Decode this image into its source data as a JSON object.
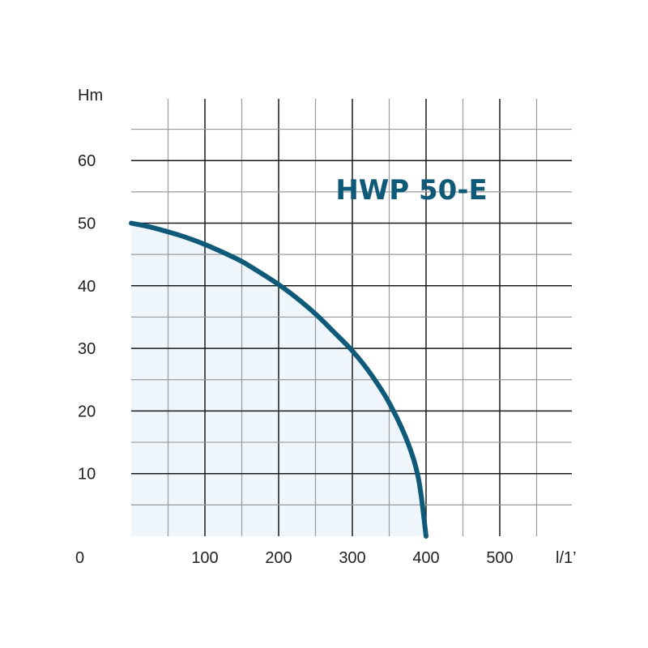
{
  "chart_data": {
    "type": "line",
    "title": "HWP 50-E",
    "xlabel": "l/1’",
    "ylabel": "Hm",
    "origin_label": "0",
    "xlim": [
      0,
      600
    ],
    "ylim": [
      0,
      70
    ],
    "x_ticks": [
      "100",
      "200",
      "300",
      "400",
      "500"
    ],
    "y_ticks": [
      "10",
      "20",
      "30",
      "40",
      "50",
      "60"
    ],
    "grid": true,
    "fill_under_curve": true,
    "series": [
      {
        "x": [
          0,
          25,
          50,
          75,
          100,
          125,
          150,
          175,
          200,
          225,
          250,
          275,
          300,
          325,
          350,
          375,
          390,
          400
        ],
        "y": [
          50,
          49.4,
          48.6,
          47.7,
          46.6,
          45.3,
          43.9,
          42.1,
          40.2,
          38,
          35.5,
          32.6,
          29.6,
          25.9,
          21.3,
          15,
          9,
          0
        ]
      }
    ],
    "colors": {
      "curve": "#0e5a78",
      "fill": "#eef6fb",
      "title": "#0e5a78",
      "grid_major": "#1a1a1a",
      "grid_minor": "#9a9a9a"
    }
  }
}
